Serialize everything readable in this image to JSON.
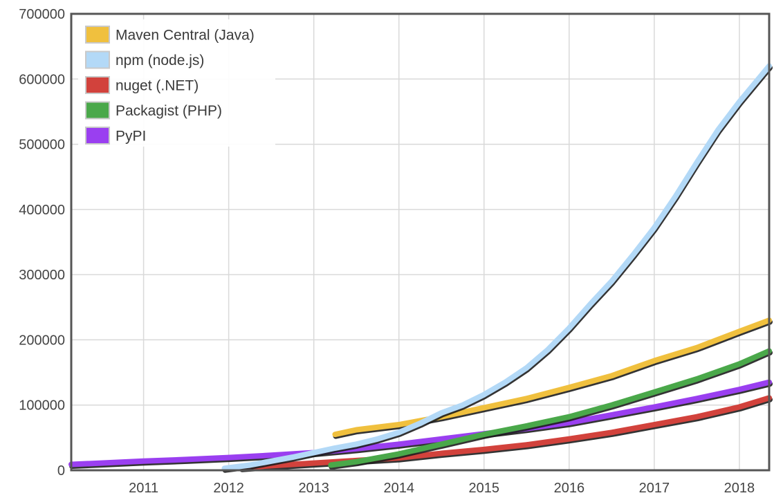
{
  "chart_data": {
    "type": "line",
    "title": "",
    "xlabel": "",
    "ylabel": "",
    "xlim": [
      2010.15,
      2018.35
    ],
    "ylim": [
      0,
      700000
    ],
    "grid": true,
    "legend_position": "top-left",
    "x_ticks": [
      "2011",
      "2012",
      "2013",
      "2014",
      "2015",
      "2016",
      "2017",
      "2018"
    ],
    "y_ticks": [
      "0",
      "100000",
      "200000",
      "300000",
      "400000",
      "500000",
      "600000",
      "700000"
    ],
    "series": [
      {
        "name": "Maven Central (Java)",
        "color": "#f0c03e",
        "points": [
          [
            2013.25,
            55000
          ],
          [
            2013.5,
            62000
          ],
          [
            2014.0,
            70000
          ],
          [
            2014.5,
            82000
          ],
          [
            2015.0,
            96000
          ],
          [
            2015.5,
            110000
          ],
          [
            2016.0,
            127000
          ],
          [
            2016.5,
            145000
          ],
          [
            2017.0,
            168000
          ],
          [
            2017.5,
            188000
          ],
          [
            2018.0,
            213000
          ],
          [
            2018.35,
            230000
          ]
        ]
      },
      {
        "name": "npm (node.js)",
        "color": "#b3d9f7",
        "points": [
          [
            2011.95,
            3000
          ],
          [
            2012.25,
            8000
          ],
          [
            2012.5,
            14000
          ],
          [
            2012.75,
            20000
          ],
          [
            2013.0,
            27000
          ],
          [
            2013.25,
            34000
          ],
          [
            2013.5,
            40000
          ],
          [
            2013.75,
            48000
          ],
          [
            2014.0,
            58000
          ],
          [
            2014.25,
            72000
          ],
          [
            2014.5,
            88000
          ],
          [
            2014.75,
            100000
          ],
          [
            2015.0,
            116000
          ],
          [
            2015.25,
            135000
          ],
          [
            2015.5,
            157000
          ],
          [
            2015.75,
            185000
          ],
          [
            2016.0,
            218000
          ],
          [
            2016.25,
            255000
          ],
          [
            2016.5,
            290000
          ],
          [
            2016.75,
            330000
          ],
          [
            2017.0,
            372000
          ],
          [
            2017.25,
            420000
          ],
          [
            2017.5,
            472000
          ],
          [
            2017.75,
            522000
          ],
          [
            2018.0,
            565000
          ],
          [
            2018.35,
            620000
          ]
        ]
      },
      {
        "name": "nuget (.NET)",
        "color": "#d2423c",
        "points": [
          [
            2012.15,
            4000
          ],
          [
            2012.5,
            7000
          ],
          [
            2013.0,
            11000
          ],
          [
            2013.5,
            15000
          ],
          [
            2014.0,
            19000
          ],
          [
            2014.5,
            26000
          ],
          [
            2015.0,
            32000
          ],
          [
            2015.5,
            39000
          ],
          [
            2016.0,
            48000
          ],
          [
            2016.5,
            58000
          ],
          [
            2017.0,
            70000
          ],
          [
            2017.5,
            82000
          ],
          [
            2018.0,
            97000
          ],
          [
            2018.35,
            111000
          ]
        ]
      },
      {
        "name": "Packagist (PHP)",
        "color": "#4aa84a",
        "points": [
          [
            2013.2,
            8000
          ],
          [
            2013.5,
            13000
          ],
          [
            2014.0,
            25000
          ],
          [
            2014.5,
            40000
          ],
          [
            2015.0,
            55000
          ],
          [
            2015.5,
            68000
          ],
          [
            2016.0,
            82000
          ],
          [
            2016.5,
            100000
          ],
          [
            2017.0,
            120000
          ],
          [
            2017.5,
            140000
          ],
          [
            2018.0,
            163000
          ],
          [
            2018.35,
            183000
          ]
        ]
      },
      {
        "name": "PyPI",
        "color": "#9a3ff0",
        "points": [
          [
            2010.15,
            9000
          ],
          [
            2010.5,
            11000
          ],
          [
            2011.0,
            14000
          ],
          [
            2011.5,
            16500
          ],
          [
            2012.0,
            19500
          ],
          [
            2012.5,
            23000
          ],
          [
            2013.0,
            27000
          ],
          [
            2013.5,
            33000
          ],
          [
            2014.0,
            40000
          ],
          [
            2014.5,
            48000
          ],
          [
            2015.0,
            56000
          ],
          [
            2015.5,
            64000
          ],
          [
            2016.0,
            73000
          ],
          [
            2016.5,
            85000
          ],
          [
            2017.0,
            97000
          ],
          [
            2017.5,
            110000
          ],
          [
            2018.0,
            124000
          ],
          [
            2018.35,
            135000
          ]
        ]
      }
    ]
  }
}
